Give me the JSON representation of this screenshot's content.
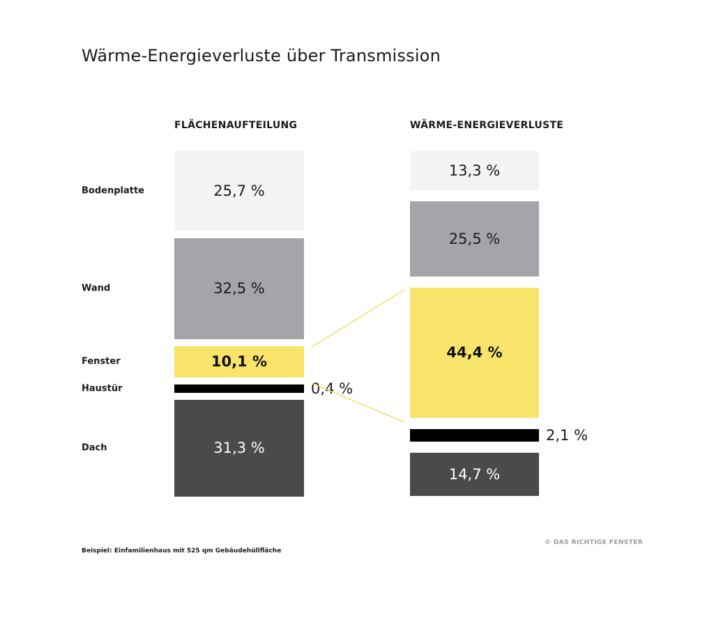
{
  "chart_data": {
    "type": "bar",
    "title": "Wärme-Energieverluste über Transmission",
    "categories": [
      "Bodenplatte",
      "Wand",
      "Fenster",
      "Haustür",
      "Dach"
    ],
    "series": [
      {
        "name": "FLÄCHENAUFTEILUNG",
        "values": [
          25.7,
          32.5,
          10.1,
          0.4,
          31.3
        ],
        "labels": [
          "25,7 %",
          "32,5 %",
          "10,1 %",
          "0,4 %",
          "31,3 %"
        ]
      },
      {
        "name": "WÄRME-ENERGIEVERLUSTE",
        "values": [
          13.3,
          25.5,
          44.4,
          2.1,
          14.7
        ],
        "labels": [
          "13,3 %",
          "25,5 %",
          "44,4 %",
          "2,1 %",
          "14,7 %"
        ]
      }
    ],
    "colors": [
      "#f4f4f4",
      "#a5a4a8",
      "#f9e46b",
      "#000000",
      "#4a4a4a"
    ],
    "text_colors": [
      "#1a1a1a",
      "#1a1a1a",
      "#111111",
      "#1a1a1a",
      "#ffffff"
    ],
    "bold_category": "Fenster",
    "stacked": true,
    "grid": false,
    "legend": "left"
  },
  "footnote": "Beispiel: Einfamilienhaus mit 525 qm Gebäudehüllfläche",
  "credit": "© DAS RICHTIGE FENSTER"
}
